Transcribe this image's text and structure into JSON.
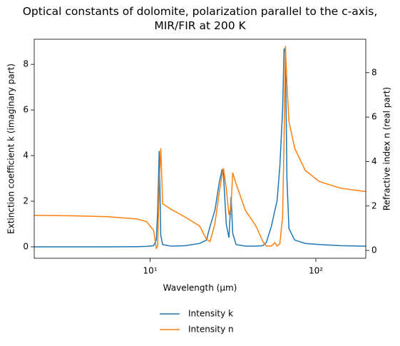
{
  "chart_data": {
    "type": "line",
    "title": "Optical constants of dolomite, polarization parallel to the c-axis,\nMIR/FIR at 200 K",
    "xlabel": "Wavelength (μm)",
    "ylabel": "Extinction coefficient k (imaginary part)",
    "y2label": "Refractive index n (real part)",
    "xscale": "log",
    "x": [
      2.0,
      3.41,
      5.56,
      8.22,
      9.52,
      10.5,
      10.9,
      11.1,
      11.35,
      11.6,
      11.9,
      13.4,
      16.3,
      19.9,
      21.9,
      23.0,
      24.6,
      26.1,
      27.2,
      27.7,
      28.8,
      29.9,
      30.8,
      31.5,
      33.0,
      37.6,
      43.5,
      47.9,
      50.3,
      53.9,
      56.6,
      58.3,
      60.6,
      63.0,
      64.3,
      65.5,
      66.9,
      68.8,
      74.5,
      86.3,
      105,
      141,
      200
    ],
    "series": [
      {
        "name": "Intensity k",
        "color": "#1f77b4",
        "axis": "y",
        "values": [
          0,
          0,
          0,
          0.01,
          0.02,
          0.05,
          0.3,
          1.5,
          4.2,
          0.5,
          0.1,
          0.03,
          0.05,
          0.15,
          0.3,
          0.9,
          1.6,
          2.8,
          3.4,
          3.2,
          1.0,
          0.4,
          2.2,
          0.6,
          0.1,
          0.03,
          0.03,
          0.05,
          0.2,
          0.9,
          1.6,
          2.0,
          3.5,
          6.0,
          8.7,
          8.5,
          3.0,
          0.8,
          0.3,
          0.15,
          0.1,
          0.05,
          0.03
        ]
      },
      {
        "name": "Intensity n",
        "color": "#ff7f0e",
        "axis": "y2",
        "values": [
          1.58,
          1.56,
          1.52,
          1.42,
          1.3,
          0.9,
          0.1,
          0.2,
          3.0,
          4.6,
          2.1,
          1.85,
          1.5,
          1.1,
          0.5,
          0.4,
          1.2,
          2.6,
          3.4,
          3.7,
          2.8,
          1.6,
          2.0,
          3.5,
          3.0,
          1.8,
          1.1,
          0.4,
          0.2,
          0.2,
          0.35,
          0.2,
          0.3,
          1.5,
          5.0,
          9.2,
          7.5,
          5.8,
          4.6,
          3.6,
          3.1,
          2.8,
          2.65
        ]
      }
    ],
    "xlim": [
      2,
      200
    ],
    "xticks": [
      {
        "value": 10,
        "label": "10¹"
      },
      {
        "value": 100,
        "label": "10²"
      }
    ],
    "ylim": [
      -0.5,
      9.1
    ],
    "yticks": [
      0,
      2,
      4,
      6,
      8
    ],
    "y2lim": [
      -0.35,
      9.5
    ],
    "y2ticks": [
      0,
      2,
      4,
      6,
      8
    ],
    "legend": "lower center"
  }
}
